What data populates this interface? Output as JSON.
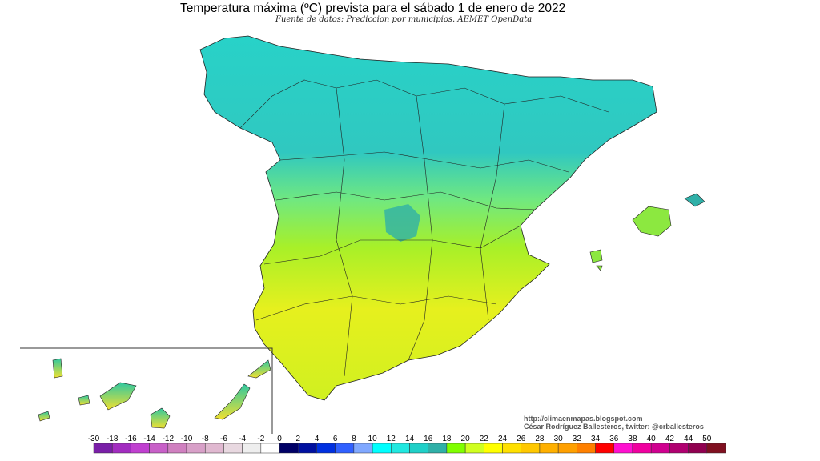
{
  "header": {
    "title": "Temperatura máxima (ºC) prevista para el sábado 1 de enero de 2022",
    "subtitle": "Fuente de datos: Prediccion por municipios. AEMET OpenData"
  },
  "credits": {
    "url": "http://climaenmapas.blogspot.com",
    "author": "César Rodríguez Ballesteros, twitter: @crballesteros"
  },
  "legend": {
    "labels": [
      "-30",
      "-18",
      "-16",
      "-14",
      "-12",
      "-10",
      "-8",
      "-6",
      "-4",
      "-2",
      "0",
      "2",
      "4",
      "6",
      "8",
      "10",
      "12",
      "14",
      "16",
      "18",
      "20",
      "22",
      "24",
      "26",
      "28",
      "30",
      "32",
      "34",
      "36",
      "38",
      "40",
      "42",
      "44",
      "50"
    ],
    "colors": [
      "#7a1fa8",
      "#a22cc0",
      "#c040d0",
      "#c860c8",
      "#d080c0",
      "#d8a0c8",
      "#e0b8d0",
      "#e8d8e0",
      "#eeeeee",
      "#ffffff",
      "#000066",
      "#0010a0",
      "#0030e0",
      "#3060ff",
      "#80a8ff",
      "#00ffff",
      "#20e8e0",
      "#20d0c8",
      "#30b0a8",
      "#80ff00",
      "#d0ff20",
      "#ffff00",
      "#ffe000",
      "#ffc800",
      "#ffb000",
      "#ffa000",
      "#ff8000",
      "#ff0000",
      "#ff10d0",
      "#f000a0",
      "#d00090",
      "#b00070",
      "#900050",
      "#801020"
    ]
  },
  "map_colors": {
    "north": "#28d2c8",
    "middle": "#8cf030",
    "south": "#e6f01e",
    "dark": "#30b0a8"
  }
}
